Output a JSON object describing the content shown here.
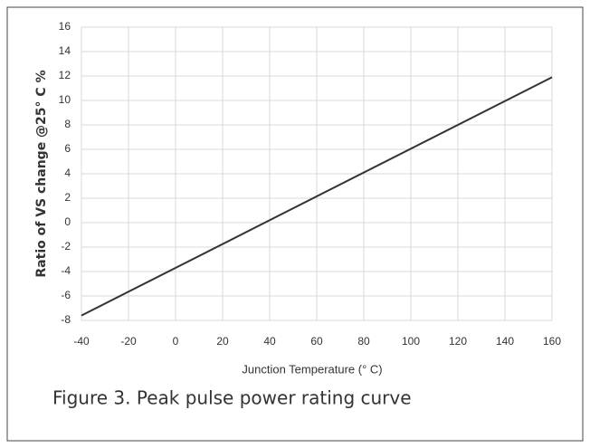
{
  "chart_data": {
    "type": "line",
    "title": "Figure 3. Peak pulse power rating curve",
    "xlabel": "Junction Temperature (° C)",
    "ylabel": "Ratio of VS change @25° C %",
    "x": [
      -40,
      160
    ],
    "series": [
      {
        "color": "#333333",
        "values": [
          -7.6,
          11.9
        ]
      }
    ],
    "xlim": [
      -40,
      160
    ],
    "xticks": [
      -40,
      -20,
      0,
      20,
      40,
      60,
      80,
      100,
      120,
      140,
      160
    ],
    "ylim": [
      -8,
      16
    ],
    "yticks": [
      -8,
      -6,
      -4,
      -2,
      0,
      2,
      4,
      6,
      8,
      10,
      12,
      14,
      16
    ],
    "grid": true
  }
}
